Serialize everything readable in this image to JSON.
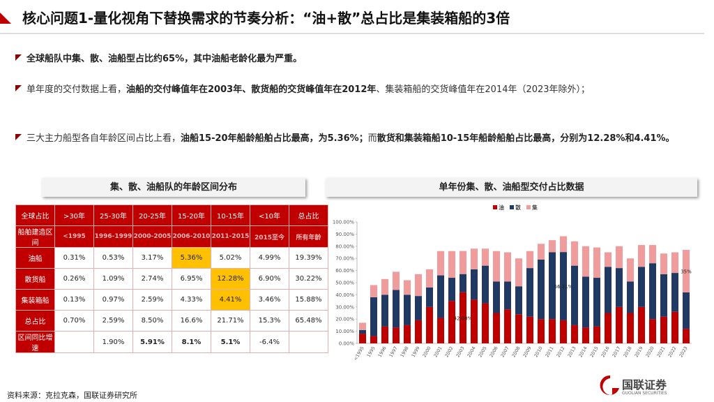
{
  "header": {
    "title": "核心问题1-量化视角下替换需求的节奏分析：“油+散”总占比是集装箱船的3倍"
  },
  "bullets": [
    [
      {
        "text": "全球船队中集、散、油船型占比约65%，其中油船老龄化最为严重。",
        "bold": true
      }
    ],
    [
      {
        "text": "单年度的交付数据上看，",
        "bold": false
      },
      {
        "text": "油船的交付峰值年在2003年、散货船的交货峰值年在2012年",
        "bold": true
      },
      {
        "text": "、集装箱船的交货峰值年在2014年（2023年除外）；",
        "bold": false
      }
    ],
    [
      {
        "text": "三大主力船型各自年龄区间占比上看，",
        "bold": false
      },
      {
        "text": "油船15-20年船龄船舶占比最高，为5.36%；",
        "bold": true
      },
      {
        "text": "而",
        "bold": false
      },
      {
        "text": "散货和集装箱船10-15年船龄船舶占比最高，分别为12.28%和4.41%。",
        "bold": true
      }
    ]
  ],
  "table": {
    "title": "集、散、油船队的年龄区间分布",
    "header": [
      "全球占比",
      ">30年",
      "25-30年",
      "20-25年",
      "15-20年",
      "10-15年",
      "<10年",
      "总占比"
    ],
    "subheader": [
      "船舶建造区间",
      "<1995",
      "1996-1999",
      "2000-2005",
      "2006-2010",
      "2011-2015",
      "2015至今",
      "所有年龄"
    ],
    "rows": [
      [
        "油船",
        "0.31%",
        "0.53%",
        "3.17%",
        "5.36%",
        "5.02%",
        "4.99%",
        "19.39%"
      ],
      [
        "散货船",
        "0.26%",
        "1.09%",
        "2.74%",
        "6.95%",
        "12.28%",
        "6.90%",
        "30.22%"
      ],
      [
        "集装箱船",
        "0.13%",
        "0.97%",
        "2.59%",
        "4.33%",
        "4.41%",
        "3.46%",
        "15.88%"
      ],
      [
        "总占比",
        "0.70%",
        "2.59%",
        "8.50%",
        "16.6%",
        "21.71%",
        "15.3%",
        "65.48%"
      ],
      [
        "区间同比增速",
        null,
        "1.90%",
        "5.91%",
        "8.1%",
        "5.1%",
        "-6.4%",
        null
      ]
    ]
  },
  "chart_data": {
    "type": "bar",
    "stacked": true,
    "title": "单年份集、散、油船型交付占比数据",
    "categories": [
      "<1995",
      "1995",
      "1996",
      "1997",
      "1998",
      "1999",
      "2000",
      "2001",
      "2002",
      "2003",
      "2004",
      "2005",
      "2006",
      "2007",
      "2008",
      "2009",
      "2010",
      "2011",
      "2012",
      "2013",
      "2014",
      "2015",
      "2016",
      "2017",
      "2018",
      "2019",
      "2020",
      "2021",
      "2022",
      "2023"
    ],
    "series": [
      {
        "name": "油",
        "color": "#c00000",
        "values": [
          8,
          6,
          14,
          13,
          15,
          19,
          30,
          21,
          35,
          42.08,
          36,
          33,
          25,
          28,
          24,
          22,
          20,
          20,
          19,
          15,
          13,
          14,
          25,
          30,
          25,
          30,
          20,
          22,
          26,
          12
        ],
        "value_labels": [
          null,
          null,
          null,
          null,
          null,
          null,
          null,
          null,
          null,
          "42.08%",
          null,
          null,
          null,
          null,
          null,
          null,
          null,
          null,
          null,
          null,
          null,
          null,
          null,
          null,
          null,
          null,
          null,
          null,
          null,
          null
        ]
      },
      {
        "name": "散",
        "color": "#1f3864",
        "values": [
          3,
          32,
          26,
          31,
          25,
          20,
          16,
          35,
          19,
          15,
          25,
          31,
          26,
          23,
          23,
          40,
          49,
          55,
          56.21,
          49,
          42,
          40,
          38,
          32,
          26,
          33,
          46,
          35,
          32,
          30
        ],
        "value_labels": [
          null,
          null,
          null,
          null,
          null,
          null,
          null,
          null,
          null,
          null,
          null,
          null,
          null,
          null,
          null,
          null,
          null,
          null,
          "56.21%",
          null,
          null,
          null,
          null,
          null,
          null,
          null,
          null,
          null,
          null,
          null
        ]
      },
      {
        "name": "集",
        "color": "#f19c9c",
        "values": [
          6,
          10,
          13,
          15,
          12,
          18,
          15,
          20,
          22,
          19,
          17,
          14,
          25,
          24,
          23,
          14,
          13,
          10,
          13,
          20,
          25,
          25,
          12,
          18,
          19,
          18,
          15,
          17,
          17,
          35
        ],
        "value_labels": [
          null,
          null,
          null,
          null,
          null,
          null,
          null,
          null,
          null,
          null,
          null,
          null,
          null,
          null,
          null,
          null,
          null,
          null,
          null,
          null,
          null,
          null,
          null,
          null,
          null,
          null,
          null,
          null,
          null,
          "35%"
        ]
      }
    ],
    "ylim": [
      0,
      100
    ],
    "yticks": [
      {
        "value": 0,
        "label": "0.00%"
      },
      {
        "value": 10,
        "label": "10.00%"
      },
      {
        "value": 20,
        "label": "20.00%"
      },
      {
        "value": 30,
        "label": "30.00%"
      },
      {
        "value": 40,
        "label": "40.00%"
      },
      {
        "value": 50,
        "label": "50.00%"
      },
      {
        "value": 60,
        "label": "60.00%"
      },
      {
        "value": 70,
        "label": "70.00%"
      },
      {
        "value": 80,
        "label": "80.00%"
      },
      {
        "value": 90,
        "label": "90.00%"
      },
      {
        "value": 100,
        "label": "100.00%"
      }
    ],
    "legend": "top"
  },
  "source": "资料来源：克拉克森，国联证券研究所",
  "logo": {
    "name": "国联证券",
    "sub": "GUOLIAN SECURITIES"
  }
}
